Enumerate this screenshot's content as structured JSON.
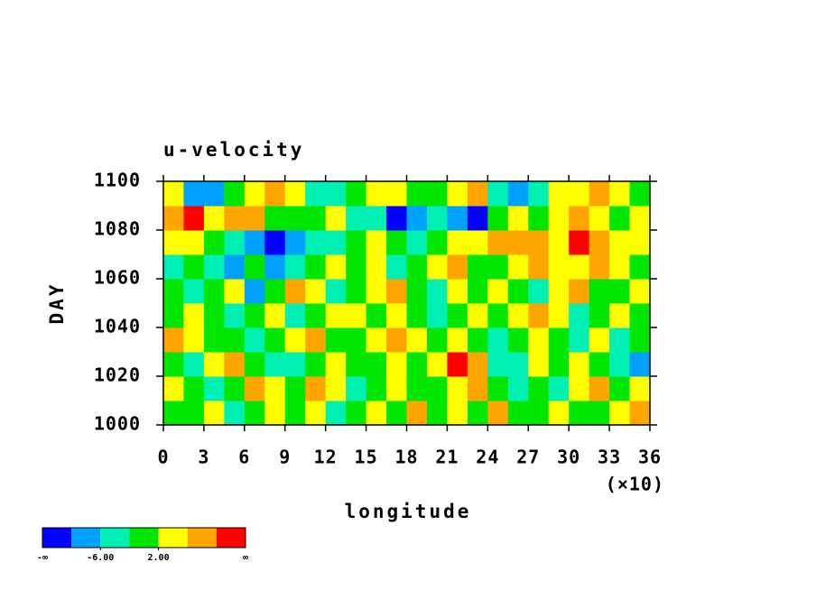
{
  "chart_data": {
    "type": "heatmap",
    "title": "u-velocity",
    "x_label": "longitude",
    "x_scale_label": "(×10)",
    "y_label": "DAY",
    "xlim": [
      0,
      36
    ],
    "xticks": [
      0,
      3,
      6,
      9,
      12,
      15,
      18,
      21,
      24,
      27,
      30,
      33,
      36
    ],
    "ylim": [
      1000,
      1100
    ],
    "yticks": [
      1000,
      1020,
      1040,
      1060,
      1080,
      1100
    ],
    "levels": [
      -10,
      -6,
      -2,
      2,
      6,
      10
    ],
    "colors": [
      "#0000ff",
      "#00a0ff",
      "#00f0b4",
      "#00e600",
      "#ffff00",
      "#ffa500",
      "#ff0000"
    ],
    "colorbar_end_labels": [
      "-∞",
      "∞"
    ],
    "colorbar_ticks": [
      {
        "value": -6,
        "label": "-6.00"
      },
      {
        "value": 2,
        "label": "2.00"
      }
    ],
    "z": [
      [
        -2,
        1,
        3,
        -3,
        0,
        4,
        -1,
        2,
        -5,
        1,
        4,
        0,
        6,
        -1,
        3,
        -2,
        8,
        1,
        -1,
        4,
        0,
        -2,
        5,
        7
      ],
      [
        3,
        0,
        -4,
        -1,
        6,
        2,
        -2,
        9,
        3,
        -3,
        -1,
        4,
        1,
        -2,
        3,
        7,
        1,
        -4,
        0,
        -3,
        2,
        6,
        -1,
        2
      ],
      [
        -1,
        -5,
        2,
        6,
        0,
        -6,
        -3,
        1,
        4,
        -2,
        0,
        3,
        -2,
        5,
        11,
        6,
        -4,
        -6,
        2,
        -1,
        3,
        -1,
        -4,
        -7
      ],
      [
        8,
        3,
        -1,
        0,
        -4,
        -1,
        3,
        6,
        1,
        -2,
        5,
        9,
        4,
        -1,
        2,
        0,
        -4,
        -1,
        3,
        0,
        -5,
        2,
        -3,
        -1
      ],
      [
        -2,
        3,
        0,
        -6,
        -1,
        2,
        -3,
        0,
        5,
        3,
        -2,
        4,
        0,
        -5,
        1,
        3,
        -1,
        5,
        8,
        2,
        -3,
        1,
        4,
        -2
      ],
      [
        0,
        -5,
        -2,
        3,
        -7,
        1,
        8,
        2,
        -3,
        0,
        4,
        7,
        1,
        -4,
        2,
        -1,
        5,
        0,
        -3,
        2,
        6,
        1,
        -2,
        3
      ],
      [
        -3,
        0,
        -6,
        -8,
        -2,
        -9,
        -5,
        0,
        3,
        -1,
        2,
        -4,
        0,
        3,
        6,
        1,
        -2,
        4,
        7,
        2,
        5,
        9,
        3,
        0
      ],
      [
        2,
        5,
        0,
        -4,
        -7,
        -11,
        -10,
        -6,
        -3,
        1,
        3,
        -2,
        -5,
        0,
        4,
        2,
        6,
        9,
        7,
        3,
        11,
        8,
        5,
        2
      ],
      [
        7,
        11,
        3,
        6,
        9,
        1,
        -2,
        0,
        2,
        -3,
        -6,
        -11,
        -9,
        -4,
        -7,
        -11,
        0,
        3,
        -2,
        4,
        6,
        3,
        -1,
        5
      ],
      [
        4,
        -8,
        -7,
        0,
        3,
        8,
        2,
        -4,
        -3,
        1,
        5,
        3,
        -2,
        0,
        4,
        7,
        -3,
        -9,
        -6,
        2,
        5,
        9,
        4,
        1
      ]
    ]
  }
}
